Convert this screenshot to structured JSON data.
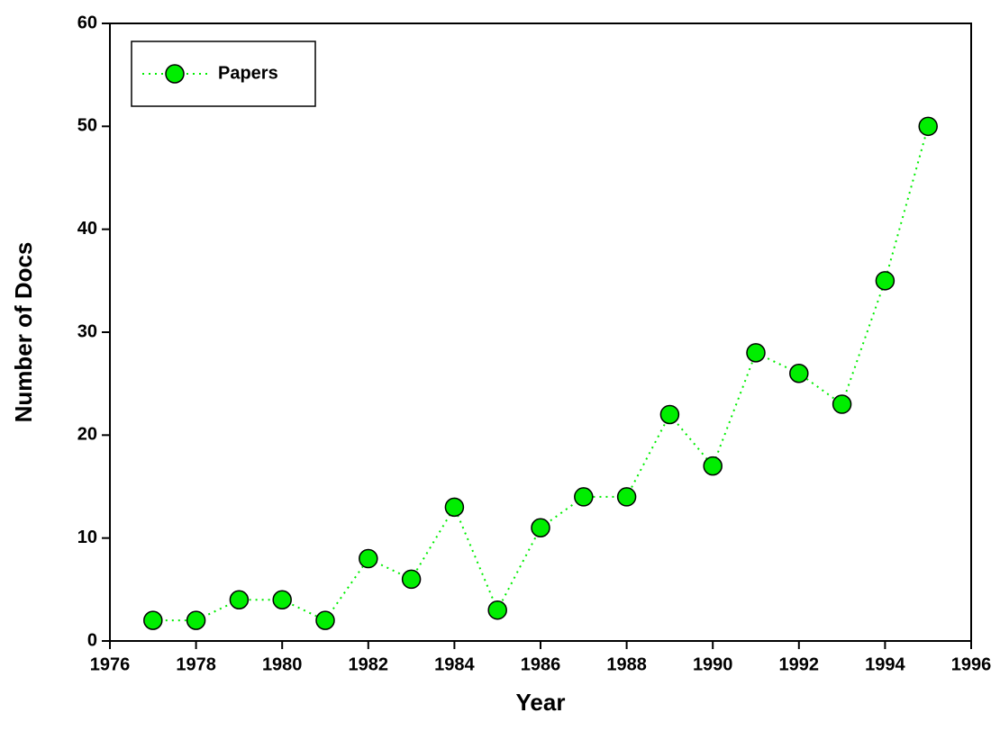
{
  "chart_data": {
    "type": "line",
    "xlabel": "Year",
    "ylabel": "Number of Docs",
    "x": [
      1977,
      1978,
      1979,
      1980,
      1981,
      1982,
      1983,
      1984,
      1985,
      1986,
      1987,
      1988,
      1989,
      1990,
      1991,
      1992,
      1993,
      1994,
      1995
    ],
    "series": [
      {
        "name": "Papers",
        "color": "#00ee00",
        "values": [
          2,
          2,
          4,
          4,
          2,
          8,
          6,
          13,
          3,
          11,
          14,
          14,
          22,
          17,
          28,
          26,
          23,
          35,
          50
        ]
      }
    ],
    "xlim": [
      1976,
      1996
    ],
    "xticks": [
      1976,
      1978,
      1980,
      1982,
      1984,
      1986,
      1988,
      1990,
      1992,
      1994,
      1996
    ],
    "ylim": [
      0,
      60
    ],
    "yticks": [
      0,
      10,
      20,
      30,
      40,
      50,
      60
    ],
    "grid": false,
    "legend": "upper-left"
  }
}
